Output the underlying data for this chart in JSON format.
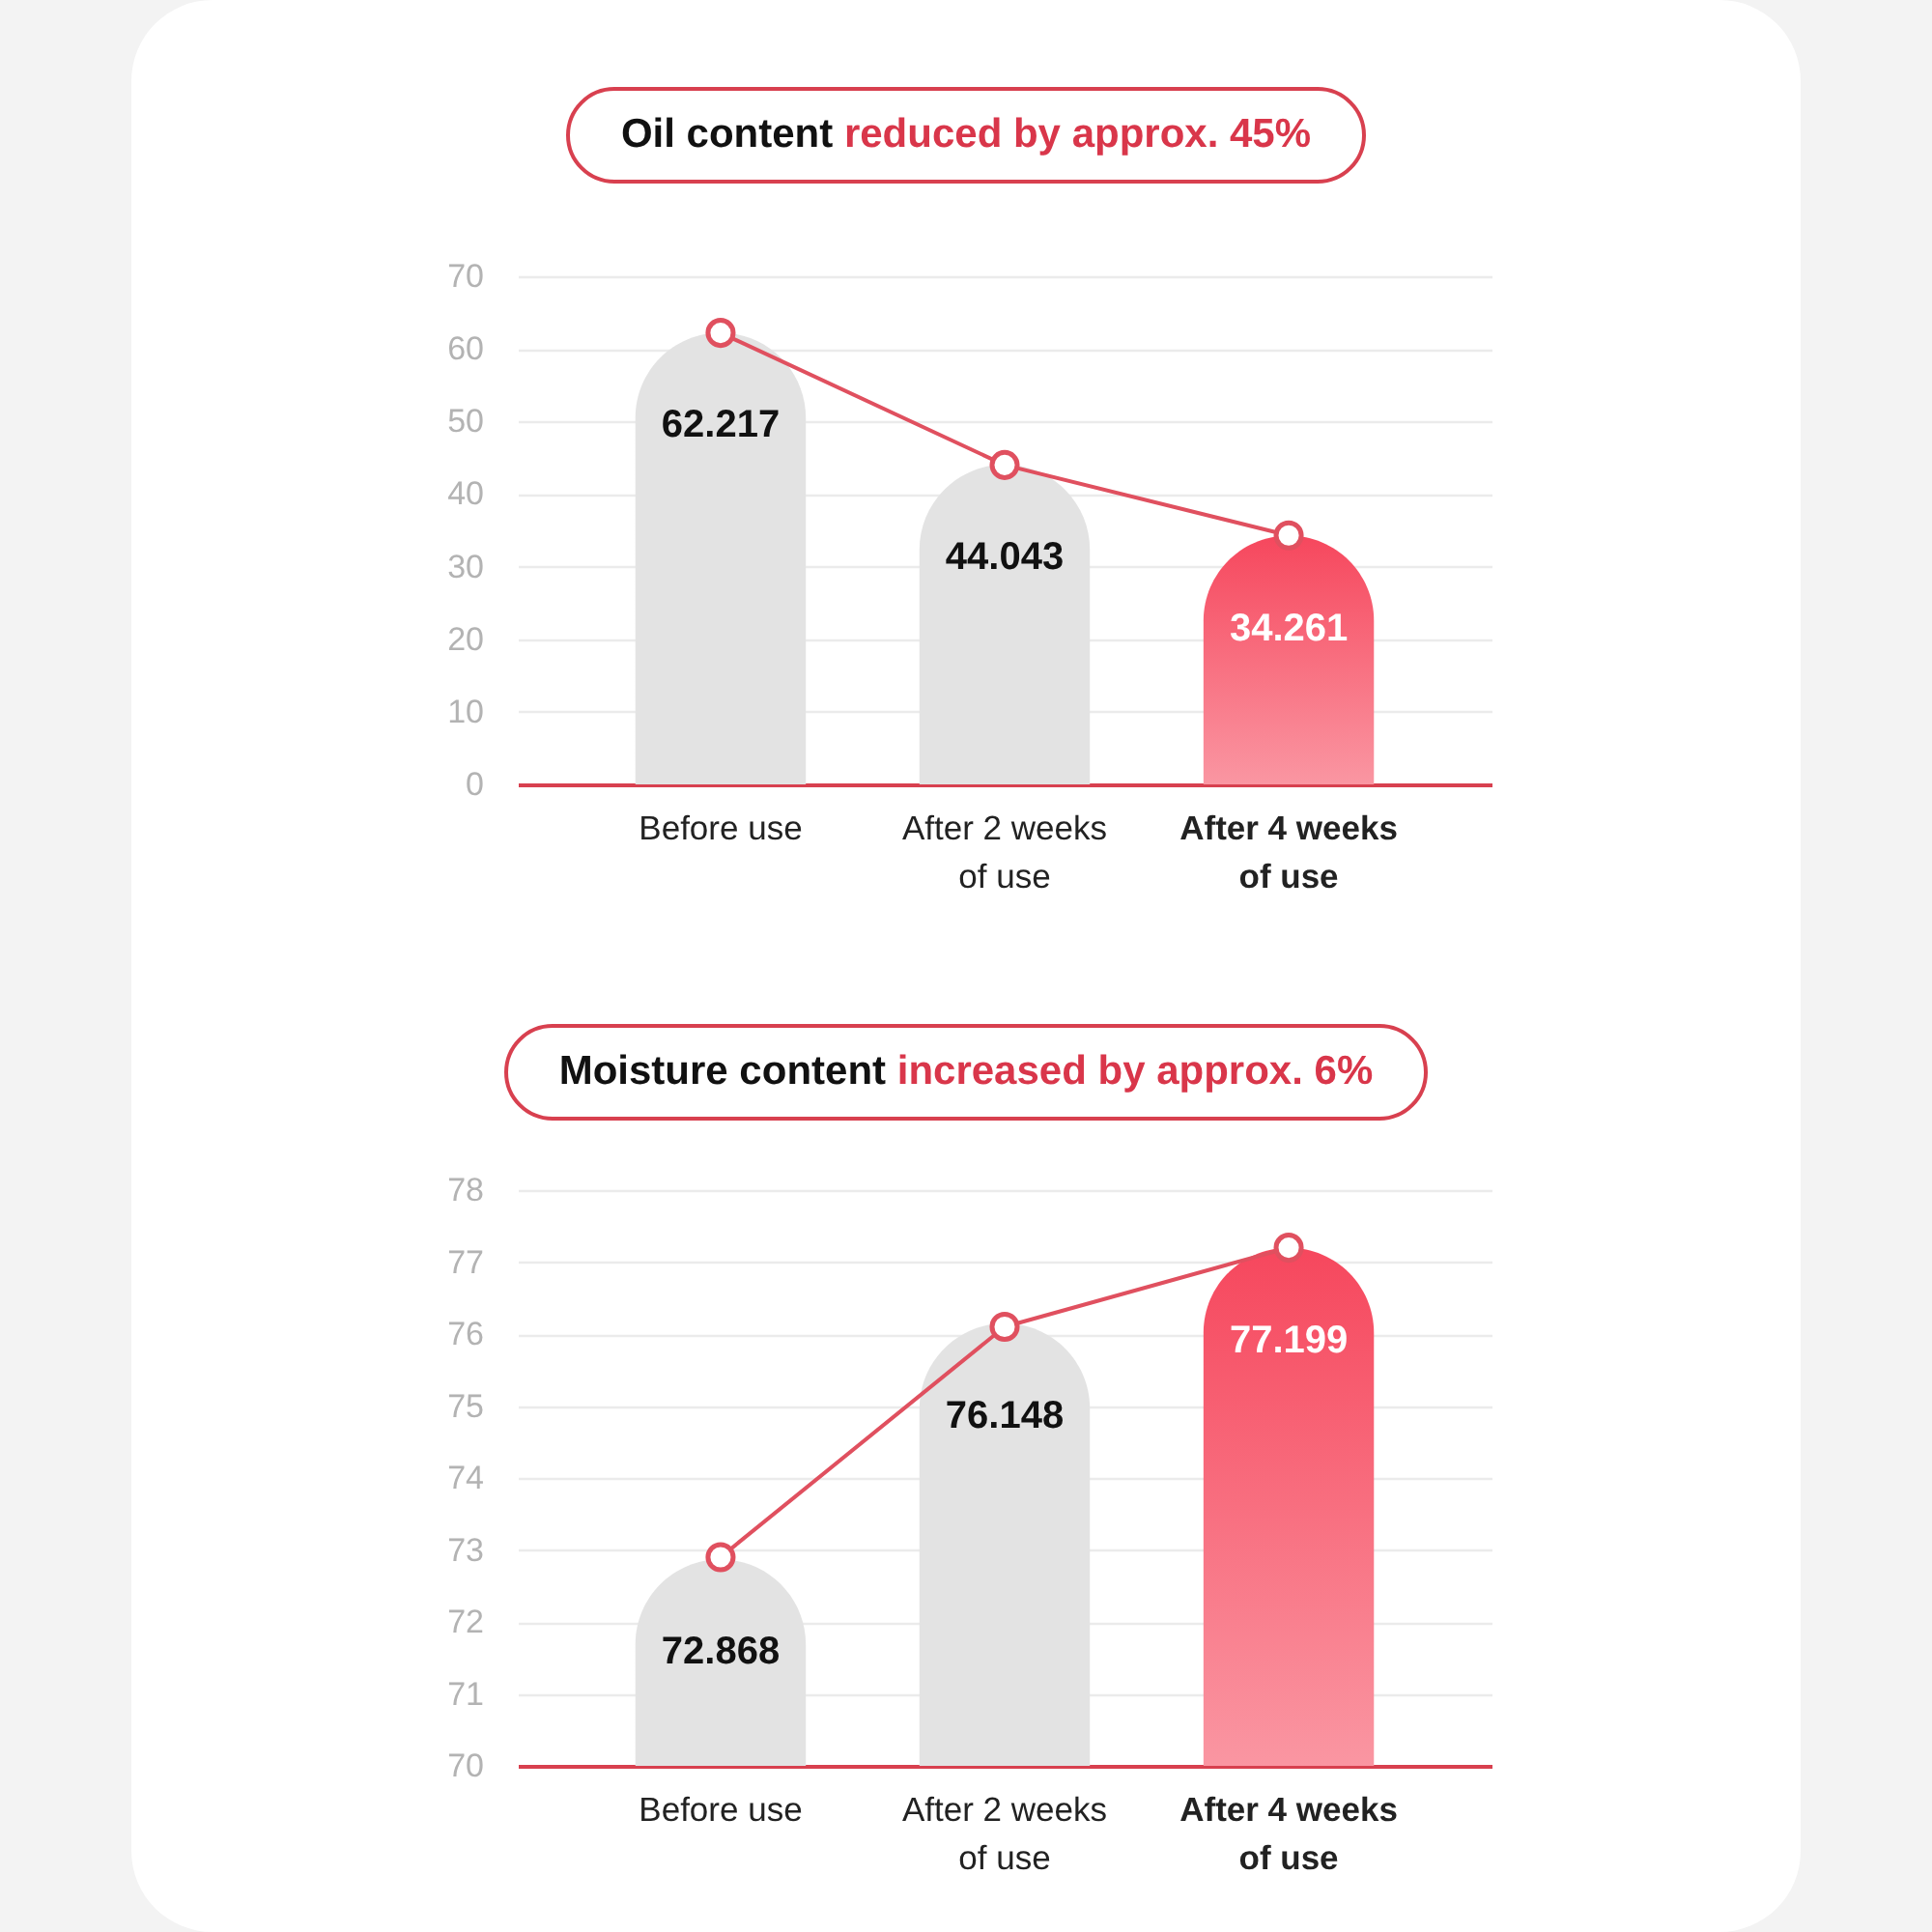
{
  "chart_data": [
    {
      "type": "bar",
      "title": "Oil content reduced by approx. 45%",
      "categories": [
        "Before use",
        "After 2 weeks of use",
        "After 4 weeks of use"
      ],
      "series": [
        {
          "values": [
            62.217,
            44.043,
            34.261
          ],
          "value_labels": [
            "62.217",
            "44.043",
            "34.261"
          ],
          "colors": [
            "#e3e3e3",
            "#e3e3e3",
            "#f6475d"
          ]
        },
        {
          "type": "line",
          "values": [
            62.2,
            44.0,
            34.3
          ],
          "color": "#e0505f",
          "marker": "circle"
        }
      ],
      "ylim": [
        0,
        70
      ],
      "yticks": [
        0,
        10,
        20,
        30,
        40,
        50,
        60,
        70
      ],
      "grid": "y"
    },
    {
      "type": "bar",
      "title": "Moisture content increased by approx. 6%",
      "categories": [
        "Before use",
        "After 2 weeks of use",
        "After 4 weeks of use"
      ],
      "series": [
        {
          "values": [
            72.868,
            76.148,
            77.199
          ],
          "value_labels": [
            "72.868",
            "76.148",
            "77.199"
          ],
          "colors": [
            "#e3e3e3",
            "#e3e3e3",
            "#f6475d"
          ]
        },
        {
          "type": "line",
          "values": [
            72.9,
            76.1,
            77.2
          ],
          "color": "#e0505f",
          "marker": "circle"
        }
      ],
      "ylim": [
        70,
        78
      ],
      "yticks": [
        70,
        71,
        72,
        73,
        74,
        75,
        76,
        77,
        78
      ],
      "grid": "y"
    }
  ]
}
